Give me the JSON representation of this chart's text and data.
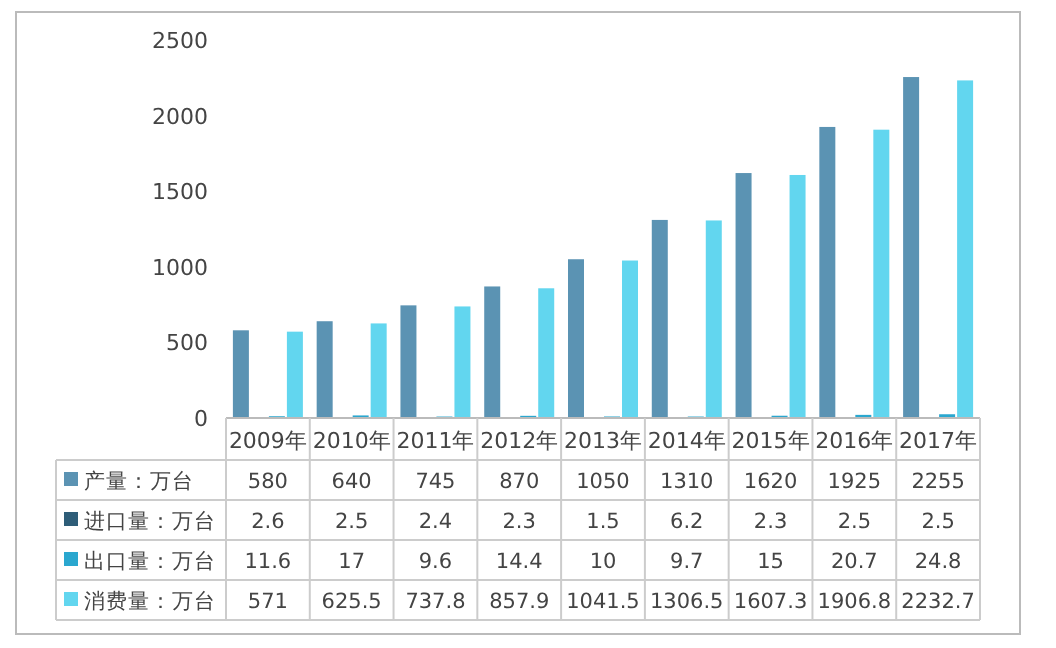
{
  "chart_data": {
    "type": "bar",
    "categories": [
      "2009年",
      "2010年",
      "2011年",
      "2012年",
      "2013年",
      "2014年",
      "2015年",
      "2016年",
      "2017年"
    ],
    "series": [
      {
        "name": "产量：万台",
        "color": "#5b93b3",
        "values": [
          580,
          640,
          745,
          870,
          1050,
          1310,
          1620,
          1925,
          2255
        ]
      },
      {
        "name": "进口量：万台",
        "color": "#2e5d78",
        "values": [
          2.6,
          2.5,
          2.4,
          2.3,
          1.5,
          6.2,
          2.3,
          2.5,
          2.5
        ]
      },
      {
        "name": "出口量：万台",
        "color": "#2aa7cf",
        "values": [
          11.6,
          17,
          9.6,
          14.4,
          10,
          9.7,
          15,
          20.7,
          24.8
        ]
      },
      {
        "name": "消费量：万台",
        "color": "#62d6ef",
        "values": [
          571,
          625.5,
          737.8,
          857.9,
          1041.5,
          1306.5,
          1607.3,
          1906.8,
          2232.7
        ]
      }
    ],
    "ylim": [
      0,
      2500
    ],
    "yticks": [
      0,
      500,
      1000,
      1500,
      2000,
      2500
    ],
    "grid": false,
    "data_labels": true,
    "legend": "bottom"
  }
}
